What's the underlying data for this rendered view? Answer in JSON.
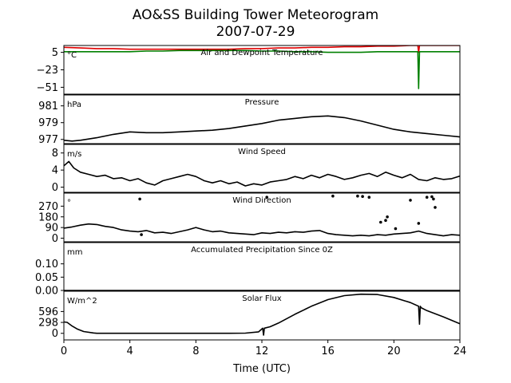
{
  "chart_data": {
    "type": "line",
    "title": "AO&SS Building Tower Meteorogram",
    "subtitle": "2007-07-29",
    "xlabel": "Time (UTC)",
    "xlim": [
      0,
      24
    ],
    "xticks": [
      "0",
      "4",
      "8",
      "12",
      "16",
      "20",
      "24"
    ],
    "colors": {
      "temperature": "#e00000",
      "dewpoint": "#008000",
      "default": "#000000"
    },
    "panels": [
      {
        "id": "temperature",
        "label": "Air and Dewpoint Temperature",
        "unit": "°C",
        "ylim": [
          -62,
          16
        ],
        "yticks": [
          "5",
          "−23",
          "−51"
        ],
        "ytick_values": [
          5,
          -23,
          -51
        ],
        "series": [
          {
            "key": "temperature",
            "style": "line",
            "x": [
              0,
              1,
              2,
              3,
              4,
              5,
              6,
              7,
              8,
              9,
              10,
              11,
              12,
              13,
              14,
              15,
              16,
              17,
              18,
              19,
              20,
              21,
              21.45,
              21.5,
              21.55,
              22,
              23,
              24
            ],
            "y": [
              13,
              12,
              11,
              11,
              10,
              10,
              10,
              10,
              10,
              10,
              10,
              11,
              11,
              12,
              12,
              13,
              13,
              14,
              14,
              15,
              15,
              16,
              16,
              5,
              16,
              16,
              16,
              16
            ]
          },
          {
            "key": "dewpoint",
            "style": "line",
            "x": [
              0,
              1,
              2,
              3,
              4,
              5,
              6,
              7,
              8,
              9,
              10,
              11,
              12,
              13,
              14,
              15,
              16,
              17,
              18,
              19,
              20,
              21,
              21.45,
              21.5,
              21.55,
              22,
              23,
              24
            ],
            "y": [
              6,
              6,
              6,
              6,
              6,
              7,
              7,
              8,
              8,
              8,
              8,
              8,
              7,
              7,
              6,
              6,
              5,
              5,
              5,
              6,
              6,
              6,
              6,
              -53,
              6,
              6,
              6,
              6
            ]
          }
        ]
      },
      {
        "id": "pressure",
        "label": "Pressure",
        "unit": "hPa",
        "ylim": [
          976.5,
          982.3
        ],
        "yticks": [
          "981",
          "979",
          "977"
        ],
        "ytick_values": [
          981,
          979,
          977
        ],
        "series": [
          {
            "key": "default",
            "style": "line",
            "x": [
              0,
              0.5,
              1,
              2,
              3,
              4,
              5,
              6,
              7,
              8,
              9,
              10,
              11,
              12,
              13,
              14,
              15,
              16,
              17,
              18,
              19,
              20,
              21,
              22,
              23,
              24
            ],
            "y": [
              976.9,
              976.8,
              976.9,
              977.2,
              977.6,
              977.9,
              977.8,
              977.8,
              977.9,
              978.0,
              978.1,
              978.3,
              978.6,
              978.9,
              979.3,
              979.5,
              979.7,
              979.8,
              979.6,
              979.2,
              978.7,
              978.2,
              977.9,
              977.7,
              977.5,
              977.3
            ]
          }
        ]
      },
      {
        "id": "wind-speed",
        "label": "Wind Speed",
        "unit": "m/s",
        "ylim": [
          -1.2,
          10
        ],
        "yticks": [
          "8",
          "4",
          "0"
        ],
        "ytick_values": [
          8,
          4,
          0
        ],
        "series": [
          {
            "key": "default",
            "style": "line",
            "x": [
              0,
              0.3,
              0.6,
              1,
              1.5,
              2,
              2.5,
              3,
              3.5,
              4,
              4.5,
              5,
              5.5,
              6,
              6.5,
              7,
              7.5,
              8,
              8.5,
              9,
              9.5,
              10,
              10.5,
              11,
              11.5,
              12,
              12.5,
              13,
              13.5,
              14,
              14.5,
              15,
              15.5,
              16,
              16.5,
              17,
              17.5,
              18,
              18.5,
              19,
              19.5,
              20,
              20.5,
              21,
              21.5,
              22,
              22.5,
              23,
              23.5,
              24
            ],
            "y": [
              5,
              6,
              4.5,
              3.5,
              3,
              2.5,
              2.8,
              2,
              2.2,
              1.5,
              2,
              1,
              0.5,
              1.5,
              2,
              2.5,
              3,
              2.5,
              1.5,
              1,
              1.5,
              0.8,
              1.2,
              0.3,
              0.8,
              0.5,
              1.2,
              1.5,
              1.8,
              2.5,
              2,
              2.8,
              2.2,
              3,
              2.5,
              1.8,
              2.2,
              2.8,
              3.2,
              2.5,
              3.5,
              2.8,
              2.2,
              3,
              1.8,
              1.5,
              2.2,
              1.8,
              2,
              2.6
            ]
          }
        ]
      },
      {
        "id": "wind-direction",
        "label": "Wind Direction",
        "unit": "°",
        "ylim": [
          -30,
          380
        ],
        "yticks": [
          "270",
          "180",
          "90",
          "0"
        ],
        "ytick_values": [
          270,
          180,
          90,
          0
        ],
        "series": [
          {
            "key": "default",
            "style": "line",
            "x": [
              0,
              0.5,
              1,
              1.5,
              2,
              2.5,
              3,
              3.5,
              4,
              4.5,
              5,
              5.5,
              6,
              6.5,
              7,
              7.5,
              8,
              8.5,
              9,
              9.5,
              10,
              10.5,
              11,
              11.5,
              12,
              12.5,
              13,
              13.5,
              14,
              14.5,
              15,
              15.5,
              16,
              16.5,
              17,
              17.5,
              18,
              18.5,
              19,
              19.5,
              20,
              20.5,
              21,
              21.5,
              22,
              22.5,
              23,
              23.5,
              24
            ],
            "y": [
              85,
              95,
              110,
              120,
              115,
              100,
              90,
              70,
              60,
              55,
              65,
              45,
              50,
              40,
              55,
              70,
              90,
              70,
              55,
              60,
              45,
              40,
              35,
              30,
              45,
              40,
              50,
              45,
              55,
              50,
              60,
              65,
              40,
              30,
              25,
              20,
              25,
              20,
              30,
              25,
              35,
              40,
              45,
              60,
              40,
              30,
              20,
              30,
              25
            ]
          },
          {
            "key": "default",
            "style": "points",
            "x": [
              4.6,
              4.7,
              12.3,
              16.3,
              17.8,
              18.1,
              18.5,
              19.2,
              19.5,
              19.6,
              20.1,
              21.0,
              21.5,
              22.0,
              22.3,
              22.4,
              22.5
            ],
            "y": [
              330,
              30,
              345,
              355,
              355,
              352,
              345,
              135,
              150,
              180,
              80,
              320,
              125,
              345,
              350,
              330,
              260
            ]
          }
        ]
      },
      {
        "id": "precipitation",
        "label": "Accumulated Precipitation Since 0Z",
        "unit": "mm",
        "ylim": [
          0,
          0.18
        ],
        "yticks": [
          "0.10",
          "0.05",
          "0.00"
        ],
        "ytick_values": [
          0.1,
          0.05,
          0
        ],
        "series": [
          {
            "key": "default",
            "style": "line",
            "x": [
              0,
              24
            ],
            "y": [
              0,
              0
            ]
          }
        ]
      },
      {
        "id": "solar",
        "label": "Solar Flux",
        "unit": "W/m^2",
        "ylim": [
          -180,
          1150
        ],
        "yticks": [
          "596",
          "298",
          "0"
        ],
        "ytick_values": [
          596,
          298,
          0
        ],
        "series": [
          {
            "key": "default",
            "style": "line",
            "x": [
              0,
              0.2,
              0.5,
              0.8,
              1.2,
              1.8,
              2,
              4,
              6,
              8,
              10,
              11,
              11.8,
              12.05,
              12.1,
              12.15,
              12.5,
              13,
              14,
              15,
              16,
              17,
              18,
              19,
              20,
              21,
              21.5,
              21.55,
              21.6,
              21.65,
              22,
              23,
              24
            ],
            "y": [
              310,
              300,
              200,
              120,
              50,
              10,
              0,
              0,
              0,
              0,
              0,
              5,
              40,
              140,
              -50,
              140,
              180,
              280,
              520,
              740,
              920,
              1030,
              1070,
              1060,
              980,
              840,
              740,
              250,
              740,
              700,
              620,
              450,
              260
            ]
          }
        ]
      }
    ]
  }
}
